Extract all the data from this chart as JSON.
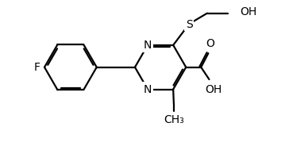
{
  "bg": "#ffffff",
  "lc": "#000000",
  "lw": 1.6,
  "fs": 10.0,
  "xlim": [
    0,
    9.5
  ],
  "ylim": [
    0,
    5.0
  ],
  "bcx": 2.2,
  "bcy": 2.7,
  "br": 0.9,
  "pcx": 5.3,
  "pcy": 2.7,
  "pr": 0.88
}
